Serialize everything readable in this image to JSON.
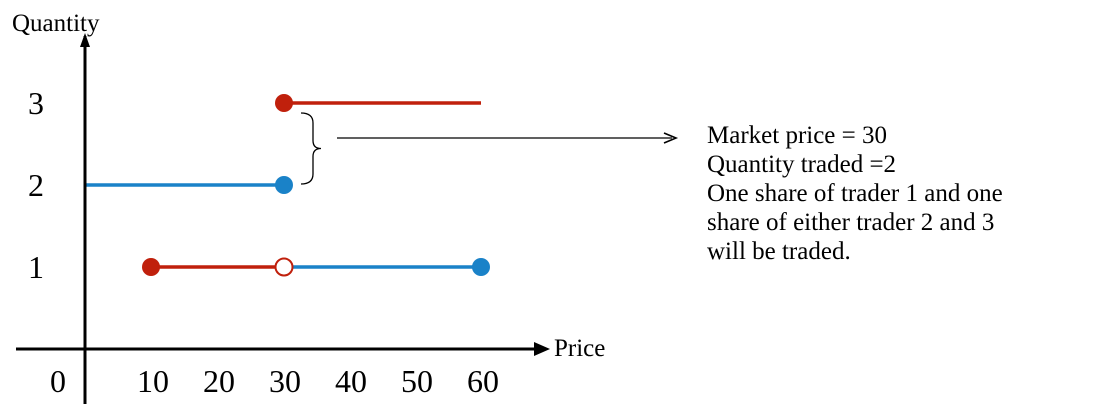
{
  "chart_data": {
    "type": "line",
    "xlabel": "Price",
    "ylabel": "Quantity",
    "origin_label": "0",
    "xticks": [
      "10",
      "20",
      "30",
      "40",
      "50",
      "60"
    ],
    "yticks": [
      "1",
      "2",
      "3"
    ],
    "xlim": [
      0,
      65
    ],
    "ylim": [
      0,
      3.5
    ],
    "colors": {
      "red": "#C0200C",
      "blue": "#1A82C8",
      "axis": "#000000"
    },
    "segments": [
      {
        "color": "red",
        "x": [
          10,
          30
        ],
        "y": [
          1,
          1
        ],
        "start_marker": "filled",
        "end_marker": "open"
      },
      {
        "color": "blue",
        "x": [
          30,
          60
        ],
        "y": [
          1,
          1
        ],
        "start_marker": "none",
        "end_marker": "filled"
      },
      {
        "color": "blue",
        "x": [
          0,
          30
        ],
        "y": [
          2,
          2
        ],
        "start_marker": "none",
        "end_marker": "filled"
      },
      {
        "color": "red",
        "x": [
          30,
          60
        ],
        "y": [
          3,
          3
        ],
        "start_marker": "filled",
        "end_marker": "none"
      }
    ],
    "annotation": {
      "brace_between_y": [
        2,
        3
      ],
      "brace_at_x": 30,
      "lines": [
        "Market price = 30",
        "Quantity traded =2",
        "One share of trader 1 and one",
        "share of either trader 2 and 3",
        "will be traded."
      ]
    }
  }
}
